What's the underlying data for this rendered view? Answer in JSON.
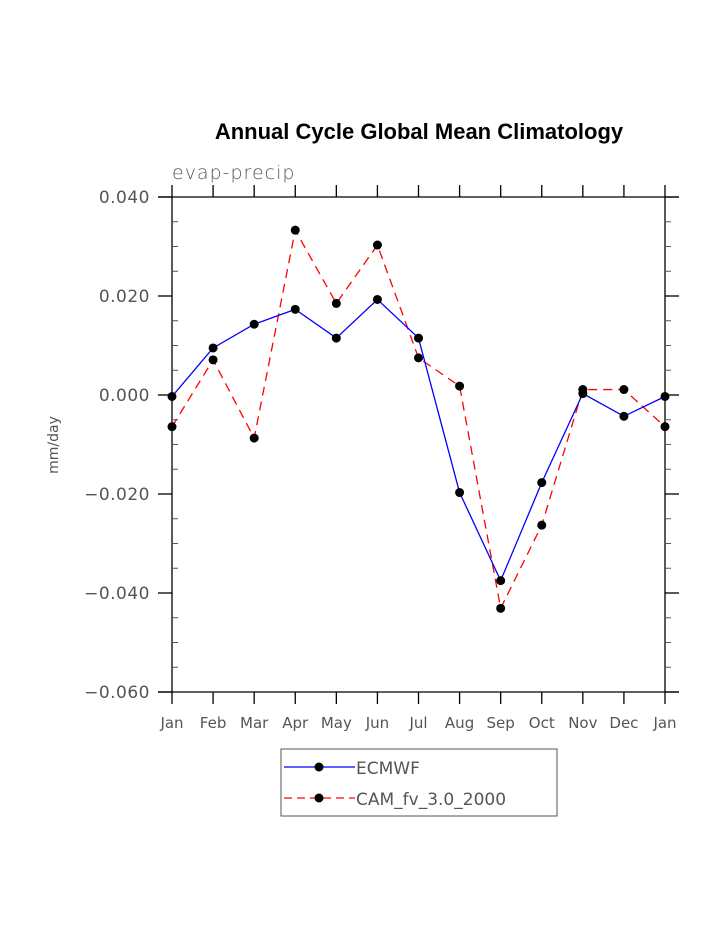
{
  "chart_data": {
    "type": "line",
    "title": "Annual Cycle Global Mean Climatology",
    "subtitle": "evap-precip",
    "xlabel": "",
    "ylabel": "mm/day",
    "categories": [
      "Jan",
      "Feb",
      "Mar",
      "Apr",
      "May",
      "Jun",
      "Jul",
      "Aug",
      "Sep",
      "Oct",
      "Nov",
      "Dec",
      "Jan"
    ],
    "ylim": [
      -0.06,
      0.04
    ],
    "yticks": [
      0.04,
      0.02,
      0.0,
      -0.02,
      -0.04,
      -0.06
    ],
    "ytick_labels": [
      "0.040",
      "0.020",
      "0.000",
      "−0.020",
      "−0.040",
      "−0.060"
    ],
    "y_minor_step": 0.005,
    "grid": false,
    "legend_position": "bottom-center",
    "series": [
      {
        "name": "ECMWF",
        "color": "#0000ff",
        "line_style": "solid",
        "marker": "filled-circle",
        "values": [
          -0.0003,
          0.0095,
          0.0143,
          0.0173,
          0.0115,
          0.0193,
          0.0115,
          -0.0197,
          -0.0375,
          -0.0177,
          0.0003,
          -0.0043,
          -0.0003
        ]
      },
      {
        "name": "CAM_fv_3.0_2000",
        "color": "#ff0000",
        "line_style": "dashed",
        "marker": "filled-circle",
        "values": [
          -0.0064,
          0.0071,
          -0.0087,
          0.0333,
          0.0185,
          0.0303,
          0.0075,
          0.0018,
          -0.0431,
          -0.0263,
          0.0011,
          0.0011,
          -0.0064
        ]
      }
    ]
  }
}
